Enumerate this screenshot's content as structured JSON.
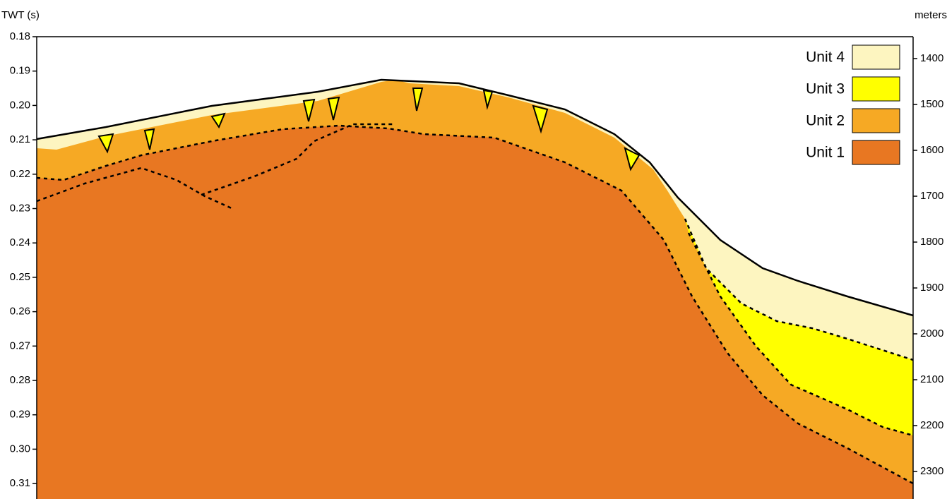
{
  "axes": {
    "left": {
      "title": "TWT (s)",
      "ticks": [
        "0.18",
        "0.19",
        "0.20",
        "0.21",
        "0.22",
        "0.23",
        "0.24",
        "0.25",
        "0.26",
        "0.27",
        "0.28",
        "0.29",
        "0.30",
        "0.31"
      ]
    },
    "right": {
      "title": "meters",
      "ticks": [
        "1400",
        "1500",
        "1600",
        "1700",
        "1800",
        "1900",
        "2000",
        "2100",
        "2200",
        "2300"
      ]
    }
  },
  "legend": [
    {
      "label": "Unit 4",
      "color": "#fdf5c0"
    },
    {
      "label": "Unit 3",
      "color": "#ffff00"
    },
    {
      "label": "Unit 2",
      "color": "#f6a924"
    },
    {
      "label": "Unit 1",
      "color": "#e87722"
    }
  ]
}
